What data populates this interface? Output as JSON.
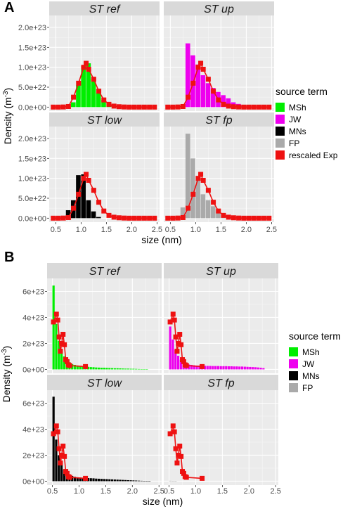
{
  "figure": {
    "panel_labels": [
      "A",
      "B"
    ],
    "legend_title": "source term",
    "legend_entries": {
      "A": [
        {
          "name": "MSh",
          "color": "#00ee00"
        },
        {
          "name": "JW",
          "color": "#ee00ee"
        },
        {
          "name": "MNs",
          "color": "#000000"
        },
        {
          "name": "FP",
          "color": "#aaaaaa"
        },
        {
          "name": "rescaled Exp",
          "color": "#ee1111"
        }
      ],
      "B": [
        {
          "name": "MSh",
          "color": "#00ee00"
        },
        {
          "name": "JW",
          "color": "#ee00ee"
        },
        {
          "name": "MNs",
          "color": "#000000"
        },
        {
          "name": "FP",
          "color": "#aaaaaa"
        }
      ]
    }
  },
  "chart_data": [
    {
      "type": "bar",
      "id": "A",
      "xlabel": "size (nm)",
      "ylabel": "Density (m^-3)",
      "xticks": [
        "0.5",
        "1.0",
        "1.5",
        "2.0",
        "2.5"
      ],
      "xlim": [
        0.37,
        2.55
      ],
      "yticks": [
        "0.0e+00",
        "5.0e+22",
        "1.0e+23",
        "1.5e+23",
        "2.0e+23"
      ],
      "ylim": [
        -1e+22,
        2.3e+23
      ],
      "bar_width": 0.1,
      "line_series": {
        "name": "rescaled Exp",
        "color": "#ee1111",
        "x": [
          0.45,
          0.55,
          0.65,
          0.75,
          0.85,
          0.95,
          1.05,
          1.1,
          1.15,
          1.25,
          1.35,
          1.45,
          1.55,
          1.65,
          1.75,
          1.85,
          1.95,
          2.05,
          2.15,
          2.25,
          2.35,
          2.45
        ],
        "y": [
          0,
          0,
          3e+20,
          1.5e+21,
          2.5e+22,
          6e+22,
          1e+23,
          1.1e+23,
          9.5e+22,
          7e+22,
          4e+22,
          1.8e+22,
          7e+21,
          2.5e+21,
          1e+21,
          3e+20,
          0,
          0,
          0,
          0,
          0,
          0
        ]
      },
      "facets": [
        {
          "title": "ST ref",
          "series_name": "MSh",
          "color": "#00ee00",
          "bars": {
            "x": [
              0.75,
              0.85,
              0.95,
              1.05,
              1.15,
              1.25,
              1.35,
              1.45,
              1.55,
              1.65,
              1.75,
              1.85,
              1.95,
              2.05
            ],
            "y": [
              1e+21,
              1.2e+22,
              5.5e+22,
              1.03e+23,
              1.1e+23,
              7e+22,
              3.6e+22,
              1.8e+22,
              1e+22,
              5e+21,
              3e+21,
              1.5e+21,
              8e+20,
              3e+20
            ]
          }
        },
        {
          "title": "ST up",
          "series_name": "JW",
          "color": "#ee00ee",
          "bars": {
            "x": [
              0.75,
              0.85,
              0.95,
              1.05,
              1.15,
              1.25,
              1.35,
              1.45,
              1.55,
              1.65,
              1.75,
              1.85,
              1.95,
              2.05,
              2.15,
              2.25
            ],
            "y": [
              2e+21,
              1.6e+23,
              1.3e+23,
              1.07e+23,
              8e+22,
              6e+22,
              4.8e+22,
              3.8e+22,
              3e+22,
              2.2e+22,
              1.2e+22,
              8e+21,
              5e+21,
              3e+21,
              1.5e+21,
              8e+20
            ]
          }
        },
        {
          "title": "ST low",
          "series_name": "MNs",
          "color": "#000000",
          "bars": {
            "x": [
              0.75,
              0.85,
              0.95,
              1.05,
              1.15,
              1.25,
              1.35
            ],
            "y": [
              2e+22,
              4.5e+22,
              1.08e+23,
              1.1e+23,
              4.5e+22,
              1.7e+22,
              3e+21
            ]
          }
        },
        {
          "title": "ST fp",
          "series_name": "FP",
          "color": "#aaaaaa",
          "bars": {
            "x": [
              0.65,
              0.75,
              0.85,
              0.95,
              1.05,
              1.15,
              1.25,
              1.35,
              1.45,
              1.55,
              1.65,
              1.75,
              1.85,
              1.95,
              2.05,
              2.15
            ],
            "y": [
              3e+21,
              2.7e+22,
              2.12e+23,
              1.5e+23,
              9.5e+22,
              6e+22,
              4.5e+22,
              3e+22,
              2e+22,
              1.2e+22,
              8e+21,
              5e+21,
              4e+21,
              3e+21,
              2e+21,
              1e+21
            ]
          }
        }
      ]
    },
    {
      "type": "bar",
      "id": "B",
      "xlabel": "size (nm)",
      "ylabel": "Density (m^-3)",
      "xticks": [
        "0.5",
        "1.0",
        "1.5",
        "2.0",
        "2.5"
      ],
      "xlim": [
        0.4,
        2.55
      ],
      "yticks": [
        "0e+00",
        "2e+23",
        "4e+23",
        "6e+23"
      ],
      "ylim": [
        -3e+22,
        7e+23
      ],
      "bar_width": 0.05,
      "line_series": {
        "name": "rescaled Exp",
        "color": "#ee1111",
        "x": [
          0.52,
          0.575,
          0.6,
          0.625,
          0.65,
          0.675,
          0.7,
          0.725,
          0.75,
          0.775,
          0.8,
          0.825,
          1.12
        ],
        "y": [
          3.65e+23,
          4.25e+23,
          3.8e+23,
          2.5e+23,
          1.4e+23,
          2e+23,
          2.7e+23,
          1.9e+23,
          7.5e+22,
          6e+22,
          3.5e+22,
          3e+22,
          2.2e+22
        ]
      },
      "facets": [
        {
          "title": "ST ref",
          "series_name": "MSh",
          "color": "#00ee00",
          "bars": {
            "x": [
              0.525,
              0.575,
              0.625,
              0.675,
              0.725,
              0.775,
              0.825,
              0.875,
              0.925,
              0.975,
              1.025,
              1.075,
              1.125,
              1.175,
              1.225,
              1.275,
              1.325,
              1.375,
              1.425,
              1.475,
              1.525,
              1.575,
              1.625,
              1.675,
              1.725,
              1.775,
              1.825,
              1.875,
              1.925,
              1.975,
              2.025,
              2.075,
              2.125,
              2.175,
              2.225,
              2.275
            ],
            "y": [
              6.45e+23,
              3.5e+23,
              2.2e+23,
              1.4e+23,
              1e+23,
              7.5e+22,
              5.5e+22,
              4e+22,
              3.5e+22,
              3e+22,
              2.6e+22,
              2.5e+22,
              2.2e+22,
              2e+22,
              1.8e+22,
              1.7e+22,
              1.5e+22,
              1.4e+22,
              1.3e+22,
              1.3e+22,
              1.2e+22,
              1.1e+22,
              1e+22,
              9e+21,
              9e+21,
              8e+21,
              7e+21,
              6e+21,
              6e+21,
              5e+21,
              5e+21,
              4e+21,
              3e+21,
              2e+21,
              2e+21,
              1e+21
            ]
          }
        },
        {
          "title": "ST up",
          "series_name": "JW",
          "color": "#ee00ee",
          "bars": {
            "x": [
              0.525,
              0.575,
              0.625,
              0.675,
              0.725,
              0.775,
              0.825,
              0.875,
              0.925,
              0.975,
              1.025,
              1.075,
              1.125,
              1.175,
              1.225,
              1.275,
              1.325,
              1.375,
              1.425,
              1.475,
              1.525,
              1.575,
              1.625,
              1.675,
              1.725,
              1.775,
              1.825,
              1.875,
              1.925,
              1.975,
              2.025,
              2.075,
              2.125,
              2.175,
              2.225,
              2.275
            ],
            "y": [
              3.3e+23,
              2.3e+23,
              1.5e+23,
              1.05e+23,
              7.5e+22,
              5.5e+22,
              4.5e+22,
              3.8e+22,
              3.5e+22,
              3.2e+22,
              3e+22,
              3e+22,
              2.8e+22,
              2.8e+22,
              2.7e+22,
              2.7e+22,
              2.6e+22,
              2.6e+22,
              2.6e+22,
              2.5e+22,
              2.5e+22,
              2.5e+22,
              2.4e+22,
              2.4e+22,
              2.3e+22,
              2.3e+22,
              2.2e+22,
              2.2e+22,
              2.1e+22,
              2e+22,
              1.9e+22,
              1.8e+22,
              1.7e+22,
              1.5e+22,
              1.3e+22,
              1e+22
            ]
          }
        },
        {
          "title": "ST low",
          "series_name": "MNs",
          "color": "#000000",
          "bars": {
            "x": [
              0.525,
              0.575,
              0.625,
              0.675,
              0.725,
              0.775,
              0.825,
              0.875,
              0.925,
              0.975,
              1.025,
              1.075,
              1.125,
              1.175,
              1.225,
              1.275,
              1.325,
              1.375,
              1.425,
              1.475,
              1.525,
              1.575,
              1.625,
              1.675,
              1.725,
              1.775,
              1.825,
              1.875,
              1.925,
              1.975,
              2.025,
              2.075,
              2.125,
              2.175,
              2.225,
              2.275,
              2.325
            ],
            "y": [
              6.5e+23,
              3.2e+23,
              2e+23,
              1.3e+23,
              9e+22,
              6.5e+22,
              5e+22,
              4e+22,
              3.4e+22,
              3e+22,
              2.8e+22,
              2.6e+22,
              2.5e+22,
              2.4e+22,
              2.3e+22,
              2.2e+22,
              2e+22,
              1.9e+22,
              1.8e+22,
              1.7e+22,
              1.6e+22,
              1.5e+22,
              1.4e+22,
              1.3e+22,
              1.2e+22,
              1.1e+22,
              1e+22,
              9e+21,
              8e+21,
              7e+21,
              6e+21,
              5e+21,
              4e+21,
              3e+21,
              2e+21,
              1e+21,
              5e+20
            ]
          }
        },
        {
          "title": "ST fp",
          "series_name": "FP",
          "color": "#aaaaaa",
          "bars": {
            "x": [
              0.525,
              0.575,
              0.625
            ],
            "y": [
              3e+21,
              2e+21,
              1e+21
            ]
          }
        }
      ]
    }
  ]
}
